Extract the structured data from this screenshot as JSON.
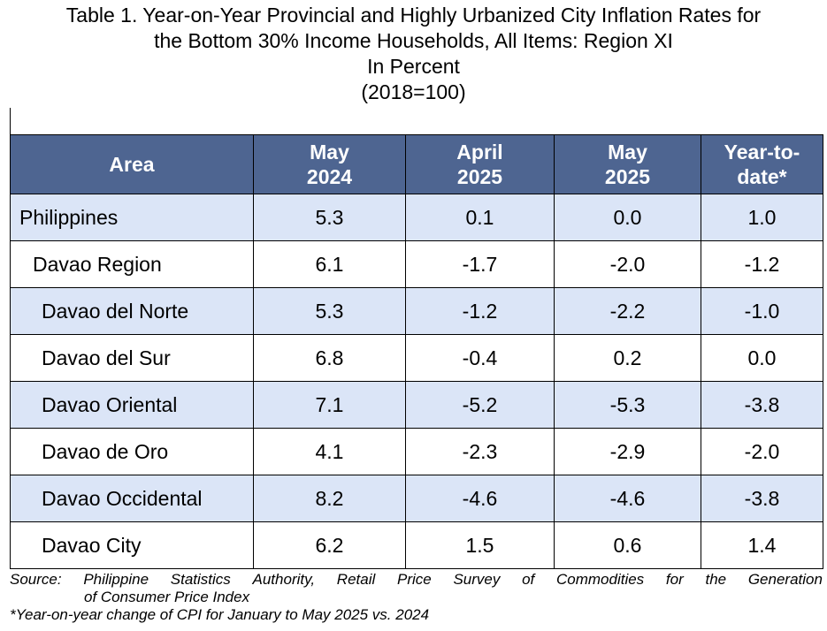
{
  "title": {
    "line1": "Table 1. Year-on-Year Provincial and Highly Urbanized City Inflation Rates for",
    "line2": "the Bottom 30% Income Households, All Items: Region XI",
    "line3": "In Percent",
    "line4": "(2018=100)"
  },
  "table": {
    "headers": {
      "area": "Area",
      "col1_line1": "May",
      "col1_line2": "2024",
      "col2_line1": "April",
      "col2_line2": "2025",
      "col3_line1": "May",
      "col3_line2": "2025",
      "col4_line1": "Year-to-",
      "col4_line2": "date*"
    },
    "rows": [
      {
        "area": "Philippines",
        "may2024": "5.3",
        "apr2025": "0.1",
        "may2025": "0.0",
        "ytd": "1.0"
      },
      {
        "area": "Davao Region",
        "may2024": "6.1",
        "apr2025": "-1.7",
        "may2025": "-2.0",
        "ytd": "-1.2"
      },
      {
        "area": "Davao del Norte",
        "may2024": "5.3",
        "apr2025": "-1.2",
        "may2025": "-2.2",
        "ytd": "-1.0"
      },
      {
        "area": "Davao del Sur",
        "may2024": "6.8",
        "apr2025": "-0.4",
        "may2025": "0.2",
        "ytd": "0.0"
      },
      {
        "area": "Davao Oriental",
        "may2024": "7.1",
        "apr2025": "-5.2",
        "may2025": "-5.3",
        "ytd": "-3.8"
      },
      {
        "area": "Davao de Oro",
        "may2024": "4.1",
        "apr2025": "-2.3",
        "may2025": "-2.9",
        "ytd": "-2.0"
      },
      {
        "area": "Davao Occidental",
        "may2024": "8.2",
        "apr2025": "-4.6",
        "may2025": "-4.6",
        "ytd": "-3.8"
      },
      {
        "area": "Davao City",
        "may2024": "6.2",
        "apr2025": "1.5",
        "may2025": "0.6",
        "ytd": "1.4"
      }
    ]
  },
  "footnotes": {
    "source_words": [
      "Source:",
      "Philippine",
      "Statistics",
      "Authority,",
      "Retail",
      "Price",
      "Survey",
      "of",
      "Commodities",
      "for",
      "the",
      "Generation"
    ],
    "source_line2": "of Consumer Price Index",
    "asterisk_note": "*Year-on-year change of CPI for January to May 2025 vs. 2024"
  },
  "colors": {
    "header_bg": "#4e6591",
    "header_text": "#ffffff",
    "shaded_row_bg": "#dbe5f7",
    "plain_row_bg": "#ffffff"
  }
}
